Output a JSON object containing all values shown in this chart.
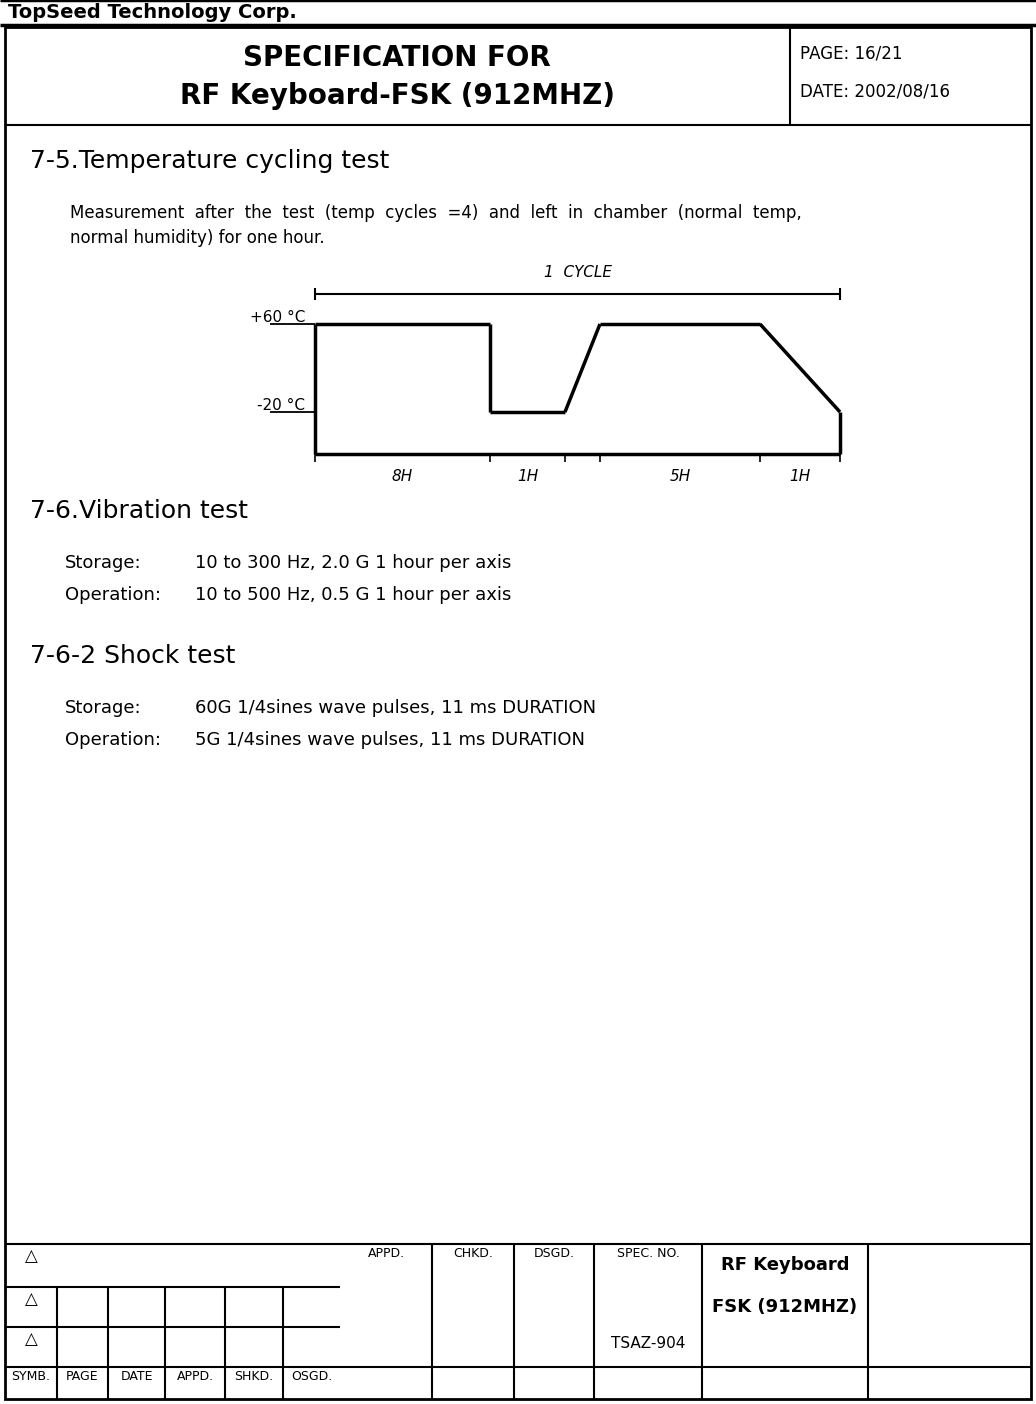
{
  "company": "TopSeed Technology Corp.",
  "title_line1": "SPECIFICATION FOR",
  "title_line2": "RF Keyboard-FSK (912MHZ)",
  "page": "PAGE: 16/21",
  "date": "DATE: 2002/08/16",
  "section1_title": "7-5.Temperature cycling test",
  "section1_text1": "Measurement  after  the  test  (temp  cycles  =4)  and  left  in  chamber  (normal  temp,",
  "section1_text2": "normal humidity) for one hour.",
  "section2_title": "7-6.Vibration test",
  "storage_label": "Storage:",
  "storage_text": "10 to 300 Hz, 2.0 G 1 hour per axis",
  "operation_label": "Operation:",
  "operation_text": "10 to 500 Hz, 0.5 G 1 hour per axis",
  "section3_title": "7-6-2 Shock test",
  "shock_storage_text": "60G 1/4sines wave pulses, 11 ms DURATION",
  "shock_operation_text": "5G 1/4sines wave pulses, 11 ms DURATION",
  "footer_symb": "SYMB.",
  "footer_page": "PAGE",
  "footer_date": "DATE",
  "footer_appd1": "APPD.",
  "footer_shkd": "SHKD.",
  "footer_osgd": "OSGD.",
  "footer_appd2": "APPD.",
  "footer_chkd": "CHKD.",
  "footer_dsgd": "DSGD.",
  "footer_spec": "SPEC. NO.",
  "footer_tsaz": "TSAZ-904",
  "footer_rf": "RF Keyboard",
  "footer_fsk": "FSK (912MHZ)",
  "delta": "△",
  "bg_color": "#ffffff",
  "border_color": "#000000",
  "text_color": "#000000",
  "temp_label_60": "+60 °C",
  "temp_label_20": "-20 °C",
  "cycle_label": "1  CYCLE",
  "time_8h": "8H",
  "time_1h_1": "1H",
  "time_5h": "5H",
  "time_1h_2": "1H"
}
